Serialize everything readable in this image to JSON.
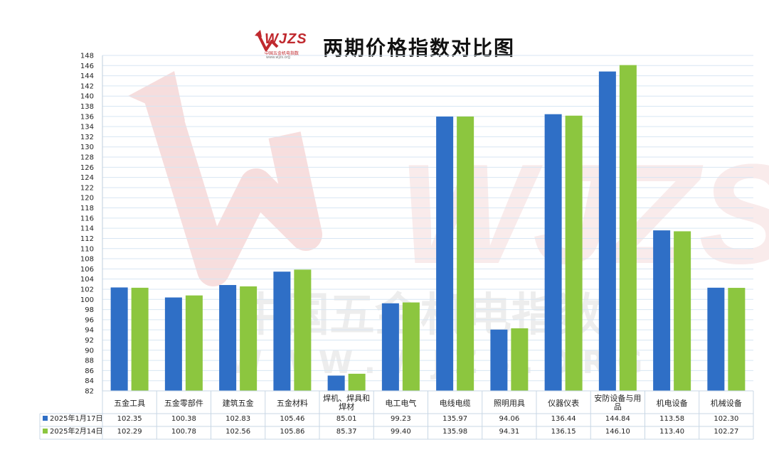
{
  "header": {
    "title": "两期价格指数对比图",
    "logo_text": "WJZS",
    "logo_subtitle": "中国五金机电指数",
    "logo_url": "www.wjzs.org"
  },
  "watermark": {
    "line1": "中国五金机电指数",
    "line2": "W W W . W J Z S . O R G",
    "logo_text": "WJZS"
  },
  "colors": {
    "series1": "#2f6fc6",
    "series2": "#8cc63f",
    "grid": "#d7e6f3",
    "watermark": "#e8b0b0"
  },
  "chart_data": {
    "type": "bar",
    "title": "两期价格指数对比图",
    "xlabel": "",
    "ylabel": "",
    "ylim": [
      82,
      148
    ],
    "ytick_step": 2,
    "grid": true,
    "legend_placement": "bottom-table",
    "categories": [
      "五金工具",
      "五金零部件",
      "建筑五金",
      "五金材料",
      "焊机、焊具和焊材",
      "电工电气",
      "电线电缆",
      "照明用具",
      "仪器仪表",
      "安防设备与用品",
      "机电设备",
      "机械设备"
    ],
    "series": [
      {
        "name": "2025年1月17日",
        "values": [
          102.35,
          100.38,
          102.83,
          105.46,
          85.01,
          99.23,
          135.97,
          94.06,
          136.44,
          144.84,
          113.58,
          102.3
        ]
      },
      {
        "name": "2025年2月14日",
        "values": [
          102.29,
          100.78,
          102.56,
          105.86,
          85.37,
          99.4,
          135.98,
          94.31,
          136.15,
          146.1,
          113.4,
          102.27
        ]
      }
    ],
    "table_values": [
      [
        "102.35",
        "100.38",
        "102.83",
        "105.46",
        "85.01",
        "99.23",
        "135.97",
        "94.06",
        "136.44",
        "144.84",
        "113.58",
        "102.30"
      ],
      [
        "102.29",
        "100.78",
        "102.56",
        "105.86",
        "85.37",
        "99.40",
        "135.98",
        "94.31",
        "136.15",
        "146.10",
        "113.40",
        "102.27"
      ]
    ]
  }
}
